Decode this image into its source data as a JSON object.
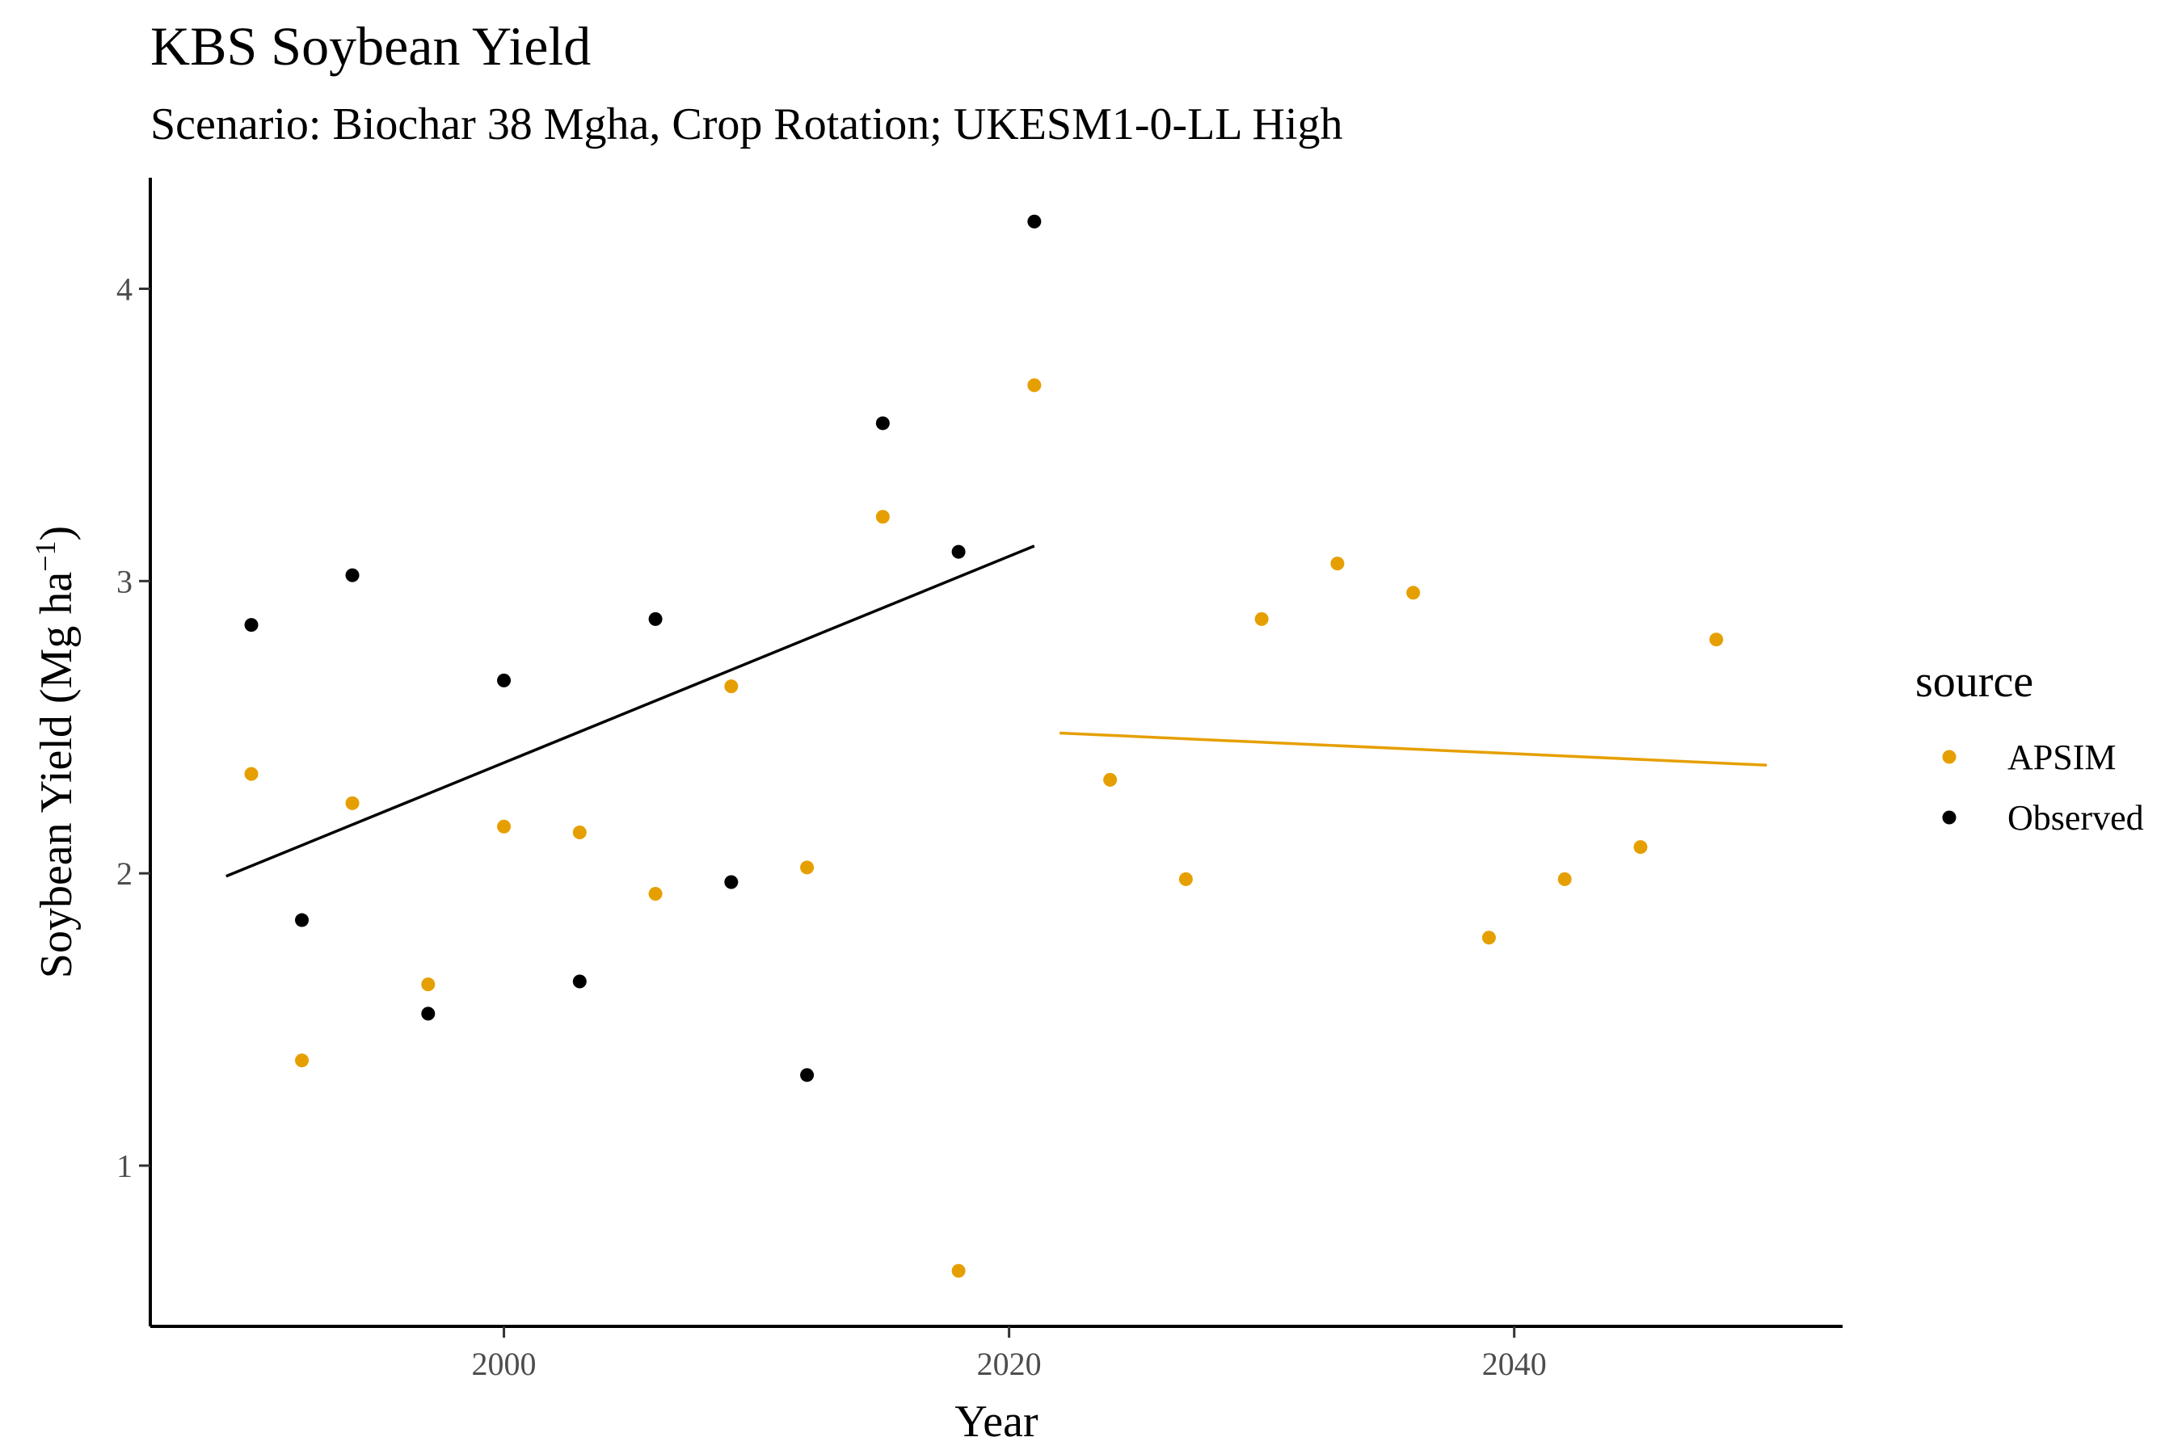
{
  "chart_data": {
    "type": "scatter",
    "title": "KBS Soybean Yield",
    "subtitle": "Scenario: Biochar 38 Mgha, Crop Rotation; UKESM1-0-LL High",
    "xlabel": "Year",
    "ylabel_main": "Soybean Yield (Mg ha",
    "ylabel_sup": "−1",
    "ylabel_close": ")",
    "xlim": [
      1986,
      2053
    ],
    "ylim": [
      0.45,
      4.38
    ],
    "xticks": [
      2000,
      2020,
      2040
    ],
    "yticks": [
      1,
      2,
      3,
      4
    ],
    "grid": false,
    "legend": {
      "title": "source",
      "position": "right",
      "entries": [
        {
          "label": "APSIM",
          "color": "#E69F00"
        },
        {
          "label": "Observed",
          "color": "#000000"
        }
      ]
    },
    "series": [
      {
        "name": "APSIM",
        "color": "#E69F00",
        "points": [
          [
            1990,
            2.34
          ],
          [
            1992,
            1.36
          ],
          [
            1994,
            2.24
          ],
          [
            1997,
            1.62
          ],
          [
            2000,
            2.16
          ],
          [
            2003,
            2.14
          ],
          [
            2006,
            1.93
          ],
          [
            2009,
            2.64
          ],
          [
            2012,
            2.02
          ],
          [
            2015,
            3.22
          ],
          [
            2018,
            0.64
          ],
          [
            2021,
            3.67
          ],
          [
            2024,
            2.32
          ],
          [
            2027,
            1.98
          ],
          [
            2030,
            2.87
          ],
          [
            2033,
            3.06
          ],
          [
            2036,
            2.96
          ],
          [
            2039,
            1.78
          ],
          [
            2042,
            1.98
          ],
          [
            2045,
            2.09
          ],
          [
            2048,
            2.8
          ]
        ],
        "trend": {
          "x": [
            2022,
            2050
          ],
          "y": [
            2.48,
            2.37
          ]
        }
      },
      {
        "name": "Observed",
        "color": "#000000",
        "points": [
          [
            1990,
            2.85
          ],
          [
            1992,
            1.84
          ],
          [
            1994,
            3.02
          ],
          [
            1997,
            1.52
          ],
          [
            2000,
            2.66
          ],
          [
            2003,
            1.63
          ],
          [
            2006,
            2.87
          ],
          [
            2009,
            1.97
          ],
          [
            2012,
            1.31
          ],
          [
            2015,
            3.54
          ],
          [
            2018,
            3.1
          ],
          [
            2021,
            4.23
          ]
        ],
        "trend": {
          "x": [
            1989,
            2021
          ],
          "y": [
            1.99,
            3.12
          ]
        }
      }
    ]
  }
}
